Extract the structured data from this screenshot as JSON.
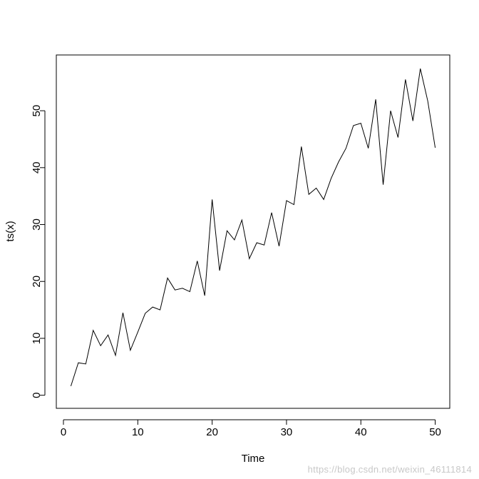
{
  "chart_data": {
    "type": "line",
    "title": "",
    "xlabel": "Time",
    "ylabel": "ts(x)",
    "xlim": [
      1,
      50
    ],
    "ylim": [
      0,
      57.5
    ],
    "xticks": [
      "0",
      "10",
      "20",
      "30",
      "40",
      "50"
    ],
    "yticks": [
      "0",
      "10",
      "20",
      "30",
      "40",
      "50"
    ],
    "grid": false,
    "series": [
      {
        "x": [
          1,
          2,
          3,
          4,
          5,
          6,
          7,
          8,
          9,
          10,
          11,
          12,
          13,
          14,
          15,
          16,
          17,
          18,
          19,
          20,
          21,
          22,
          23,
          24,
          25,
          26,
          27,
          28,
          29,
          30,
          31,
          32,
          33,
          34,
          35,
          36,
          37,
          38,
          39,
          40,
          41,
          42,
          43,
          44,
          45,
          46,
          47,
          48,
          49,
          50
        ],
        "values": [
          1.6,
          5.7,
          5.5,
          11.4,
          8.7,
          10.6,
          7.0,
          14.5,
          7.9,
          11.1,
          14.4,
          15.5,
          15.0,
          20.6,
          18.5,
          18.8,
          18.2,
          23.6,
          17.5,
          34.4,
          21.9,
          28.9,
          27.3,
          30.8,
          24.0,
          26.8,
          26.4,
          32.1,
          26.2,
          34.2,
          33.5,
          43.7,
          35.3,
          36.4,
          34.4,
          38.1,
          41.0,
          43.4,
          47.4,
          47.8,
          43.4,
          52.0,
          37.0,
          50.0,
          45.3,
          55.5,
          48.2,
          57.4,
          51.7,
          43.5
        ]
      }
    ]
  },
  "watermark": "https://blog.csdn.net/weixin_46111814"
}
